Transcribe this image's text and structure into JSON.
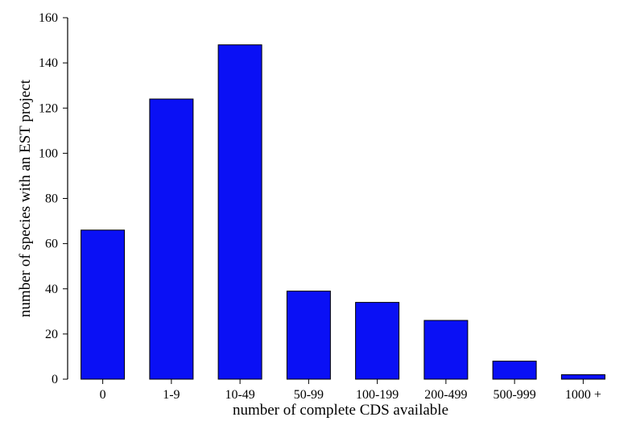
{
  "chart_data": {
    "type": "bar",
    "title": "",
    "xlabel": "number of complete CDS available",
    "ylabel": "number of species with an EST project",
    "categories": [
      "0",
      "1-9",
      "10-49",
      "50-99",
      "100-199",
      "200-499",
      "500-999",
      "1000 +"
    ],
    "values": [
      66,
      124,
      148,
      39,
      34,
      26,
      8,
      2
    ],
    "ylim": [
      0,
      160
    ],
    "yticks": [
      0,
      20,
      40,
      60,
      80,
      100,
      120,
      140,
      160
    ],
    "grid": false,
    "legend": "none",
    "colors": {
      "bar_fill": "#0a10f5",
      "bar_stroke": "#000000",
      "axis": "#000000"
    }
  }
}
